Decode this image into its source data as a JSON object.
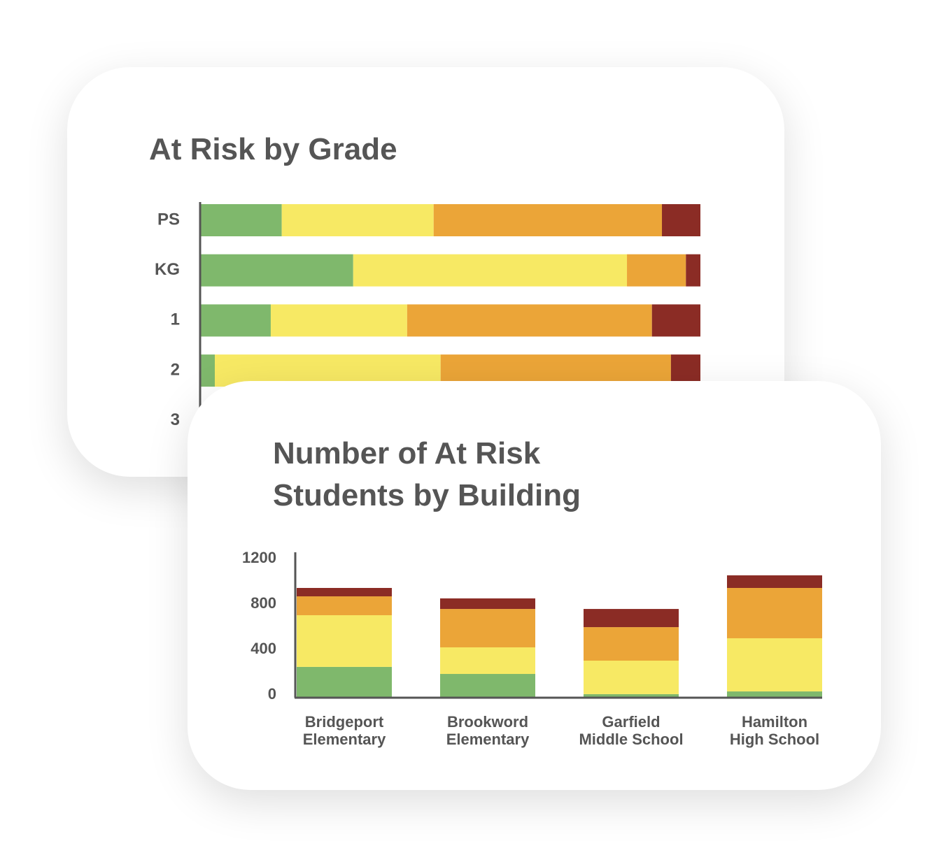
{
  "chart_data": [
    {
      "type": "bar",
      "orientation": "horizontal",
      "stacked": true,
      "title": "At Risk by Grade",
      "categories": [
        "PS",
        "KG",
        "1",
        "2",
        "3"
      ],
      "xlim": [
        0,
        100
      ],
      "series": [
        {
          "color": "#7fb86c",
          "values": [
            16.2,
            30.5,
            14.0,
            2.8,
            null
          ]
        },
        {
          "color": "#f7e964",
          "values": [
            30.4,
            54.8,
            27.3,
            45.2,
            null
          ]
        },
        {
          "color": "#eba538",
          "values": [
            45.7,
            11.8,
            49.0,
            46.1,
            null
          ]
        },
        {
          "color": "#8b2c25",
          "values": [
            7.7,
            2.9,
            9.7,
            5.9,
            null
          ]
        }
      ]
    },
    {
      "type": "bar",
      "orientation": "vertical",
      "stacked": true,
      "title": "Number of At Risk Students by Building",
      "categories": [
        "Bridgeport Elementary",
        "Brookword Elementary",
        "Garfield Middle School",
        "Hamilton High School"
      ],
      "ylim": [
        0,
        1200
      ],
      "yticks": [
        0,
        400,
        800,
        1200
      ],
      "grid": false,
      "series": [
        {
          "color": "#7fb86c",
          "values": [
            265,
            203,
            25,
            49
          ]
        },
        {
          "color": "#f7e964",
          "values": [
            455,
            234,
            295,
            468
          ]
        },
        {
          "color": "#eba538",
          "values": [
            166,
            338,
            295,
            443
          ]
        },
        {
          "color": "#8b2c25",
          "values": [
            74,
            93,
            160,
            111
          ]
        }
      ]
    }
  ]
}
